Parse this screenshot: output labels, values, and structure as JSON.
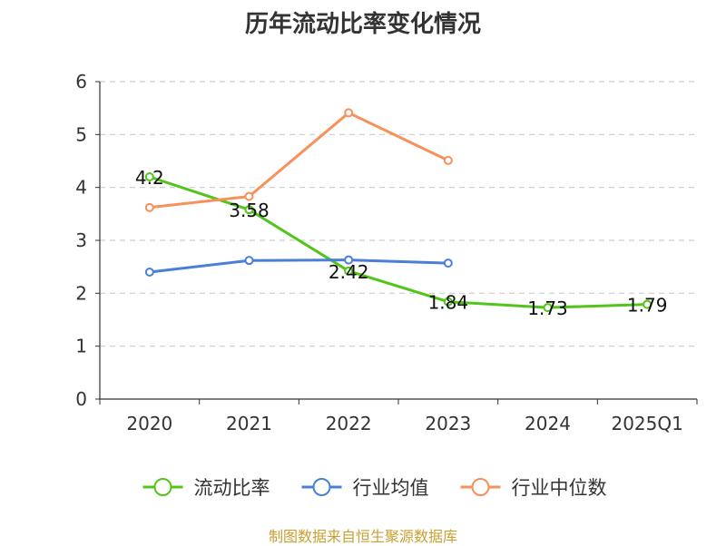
{
  "title": "历年流动比率变化情况",
  "footer": "制图数据来自恒生聚源数据库",
  "colors": {
    "axis": "#333333",
    "grid": "#cccccc",
    "text": "#333333",
    "footer": "#c8a033"
  },
  "chart_data": {
    "type": "line",
    "title": "历年流动比率变化情况",
    "categories": [
      "2020",
      "2021",
      "2022",
      "2023",
      "2024",
      "2025Q1"
    ],
    "ylim": [
      0,
      6
    ],
    "yticks": [
      0,
      1,
      2,
      3,
      4,
      5,
      6
    ],
    "grid": true,
    "legend_position": "bottom",
    "series": [
      {
        "name": "流动比率",
        "color": "#52c41a",
        "values": [
          4.2,
          3.58,
          2.42,
          1.84,
          1.73,
          1.79
        ],
        "labels": [
          "4.2",
          "3.58",
          "2.42",
          "1.84",
          "1.73",
          "1.79"
        ]
      },
      {
        "name": "行业均值",
        "color": "#4a7fd8",
        "values": [
          2.4,
          2.62,
          2.63,
          2.57,
          null,
          null
        ]
      },
      {
        "name": "行业中位数",
        "color": "#f7905a",
        "values": [
          3.62,
          3.83,
          5.41,
          4.51,
          null,
          null
        ]
      }
    ]
  }
}
